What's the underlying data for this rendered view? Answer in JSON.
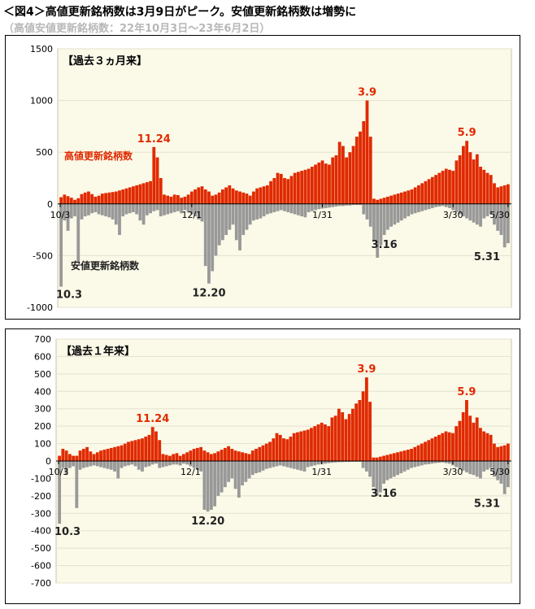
{
  "title": "＜図4＞高値更新銘柄数は3月9日がピーク。安値更新銘柄数は増勢に",
  "subtitle": "（高値安値更新銘柄数：22年10月3日～23年6月2日）",
  "colors": {
    "high": "#e02a00",
    "low": "#999999",
    "plot_bg": "#fbf9e7",
    "grid": "#e4e2cf",
    "high_label": "#e02a00",
    "low_label": "#222222"
  },
  "chart_data": [
    {
      "type": "bar",
      "panel_label": "【過去３ヵ月来】",
      "ylim": [
        -1000,
        1500
      ],
      "yticks": [
        "1500",
        "1000",
        "500",
        "0",
        "-500",
        "-1000"
      ],
      "x_tick_labels": [
        "10/3",
        "12/1",
        "1/31",
        "3/30",
        "5/30"
      ],
      "series": [
        {
          "name": "高値更新銘柄数",
          "values": [
            65,
            90,
            75,
            60,
            40,
            55,
            95,
            110,
            120,
            95,
            70,
            80,
            100,
            105,
            110,
            115,
            120,
            130,
            140,
            150,
            160,
            170,
            180,
            190,
            200,
            210,
            220,
            550,
            450,
            250,
            90,
            80,
            70,
            90,
            85,
            60,
            70,
            90,
            120,
            140,
            160,
            170,
            140,
            120,
            80,
            90,
            110,
            140,
            160,
            180,
            150,
            130,
            120,
            110,
            100,
            80,
            120,
            150,
            160,
            170,
            180,
            220,
            250,
            300,
            290,
            250,
            240,
            270,
            300,
            310,
            320,
            330,
            340,
            360,
            380,
            400,
            420,
            390,
            380,
            450,
            470,
            600,
            560,
            450,
            500,
            560,
            650,
            700,
            800,
            1000,
            650,
            50,
            40,
            50,
            60,
            70,
            80,
            90,
            100,
            110,
            120,
            130,
            140,
            160,
            180,
            200,
            220,
            240,
            260,
            280,
            300,
            320,
            340,
            330,
            320,
            420,
            470,
            560,
            610,
            500,
            430,
            480,
            360,
            330,
            300,
            280,
            200,
            160,
            170,
            180,
            190
          ]
        },
        {
          "name": "安値更新銘柄数",
          "values": [
            -800,
            -160,
            -260,
            -140,
            -120,
            -560,
            -150,
            -120,
            -110,
            -90,
            -80,
            -100,
            -110,
            -120,
            -130,
            -150,
            -200,
            -300,
            -120,
            -100,
            -90,
            -80,
            -100,
            -160,
            -200,
            -110,
            -90,
            -70,
            -60,
            -120,
            -110,
            -100,
            -90,
            -80,
            -70,
            -90,
            -60,
            -80,
            -100,
            -120,
            -150,
            -170,
            -600,
            -770,
            -650,
            -500,
            -400,
            -350,
            -300,
            -250,
            -200,
            -350,
            -450,
            -300,
            -250,
            -200,
            -160,
            -150,
            -140,
            -120,
            -100,
            -90,
            -80,
            -70,
            -60,
            -70,
            -80,
            -90,
            -100,
            -110,
            -120,
            -130,
            -80,
            -70,
            -60,
            -50,
            -45,
            -40,
            -35,
            -30,
            -25,
            -20,
            -20,
            -15,
            -15,
            -10,
            -10,
            -10,
            -100,
            -150,
            -220,
            -350,
            -520,
            -400,
            -300,
            -250,
            -220,
            -200,
            -180,
            -160,
            -140,
            -120,
            -100,
            -90,
            -80,
            -70,
            -60,
            -50,
            -40,
            -30,
            -25,
            -20,
            -30,
            -40,
            -60,
            -80,
            -100,
            -120,
            -140,
            -160,
            -180,
            -200,
            -220,
            -140,
            -120,
            -100,
            -200,
            -260,
            -300,
            -420,
            -380
          ]
        }
      ],
      "annotations": [
        {
          "text": "11.24",
          "series": "high",
          "index": 27
        },
        {
          "text": "3.9",
          "series": "high",
          "index": 89
        },
        {
          "text": "5.9",
          "series": "high",
          "index": 118
        },
        {
          "text": "10.3",
          "series": "low",
          "index": 0
        },
        {
          "text": "12.20",
          "series": "low",
          "index": 43
        },
        {
          "text": "3.16",
          "series": "low",
          "index": 94
        },
        {
          "text": "5.31",
          "series": "low",
          "index": 129
        }
      ],
      "legend_high": "高値更新銘柄数",
      "legend_low": "安値更新銘柄数"
    },
    {
      "type": "bar",
      "panel_label": "【過去１年来】",
      "ylim": [
        -700,
        700
      ],
      "yticks": [
        "700",
        "600",
        "500",
        "400",
        "300",
        "200",
        "100",
        "0",
        "-100",
        "-200",
        "-300",
        "-400",
        "-500",
        "-600",
        "-700"
      ],
      "x_tick_labels": [
        "10/3",
        "12/1",
        "1/31",
        "3/30",
        "5/30"
      ],
      "series": [
        {
          "name": "high",
          "values": [
            30,
            70,
            60,
            40,
            30,
            30,
            60,
            70,
            80,
            55,
            40,
            50,
            60,
            65,
            70,
            75,
            80,
            85,
            90,
            100,
            110,
            115,
            120,
            125,
            130,
            140,
            150,
            195,
            170,
            120,
            40,
            35,
            30,
            40,
            45,
            30,
            40,
            50,
            60,
            70,
            75,
            80,
            60,
            50,
            40,
            45,
            55,
            65,
            75,
            85,
            70,
            60,
            55,
            50,
            45,
            40,
            60,
            70,
            80,
            90,
            100,
            110,
            130,
            160,
            150,
            130,
            125,
            140,
            160,
            165,
            170,
            175,
            180,
            190,
            200,
            210,
            220,
            210,
            200,
            250,
            260,
            300,
            280,
            240,
            270,
            300,
            330,
            350,
            400,
            480,
            340,
            20,
            20,
            25,
            30,
            35,
            40,
            45,
            50,
            55,
            60,
            65,
            70,
            80,
            90,
            100,
            110,
            120,
            130,
            140,
            150,
            160,
            170,
            165,
            160,
            200,
            230,
            280,
            350,
            260,
            220,
            250,
            190,
            170,
            160,
            150,
            100,
            80,
            85,
            90,
            100
          ]
        },
        {
          "name": "low",
          "values": [
            -360,
            -40,
            -80,
            -40,
            -30,
            -270,
            -50,
            -40,
            -35,
            -30,
            -25,
            -30,
            -35,
            -40,
            -45,
            -50,
            -60,
            -100,
            -40,
            -30,
            -25,
            -20,
            -30,
            -50,
            -60,
            -35,
            -30,
            -20,
            -15,
            -40,
            -35,
            -30,
            -25,
            -20,
            -20,
            -25,
            -15,
            -20,
            -30,
            -40,
            -50,
            -60,
            -280,
            -290,
            -280,
            -260,
            -200,
            -180,
            -150,
            -120,
            -100,
            -160,
            -210,
            -140,
            -120,
            -100,
            -80,
            -70,
            -65,
            -55,
            -45,
            -40,
            -35,
            -30,
            -25,
            -30,
            -35,
            -40,
            -45,
            -50,
            -55,
            -60,
            -35,
            -30,
            -25,
            -20,
            -18,
            -15,
            -12,
            -10,
            -8,
            -6,
            -6,
            -5,
            -5,
            -4,
            -4,
            -4,
            -40,
            -60,
            -90,
            -150,
            -200,
            -180,
            -130,
            -110,
            -100,
            -90,
            -80,
            -70,
            -60,
            -50,
            -40,
            -35,
            -30,
            -25,
            -20,
            -18,
            -15,
            -12,
            -10,
            -8,
            -12,
            -15,
            -25,
            -35,
            -45,
            -55,
            -65,
            -75,
            -80,
            -90,
            -100,
            -60,
            -50,
            -40,
            -90,
            -110,
            -130,
            -190,
            -150
          ]
        }
      ],
      "annotations": [
        {
          "text": "11.24",
          "series": "high",
          "index": 27
        },
        {
          "text": "3.9",
          "series": "high",
          "index": 89
        },
        {
          "text": "5.9",
          "series": "high",
          "index": 118
        },
        {
          "text": "10.3",
          "series": "low",
          "index": 0
        },
        {
          "text": "12.20",
          "series": "low",
          "index": 43
        },
        {
          "text": "3.16",
          "series": "low",
          "index": 94
        },
        {
          "text": "5.31",
          "series": "low",
          "index": 129
        }
      ]
    }
  ]
}
